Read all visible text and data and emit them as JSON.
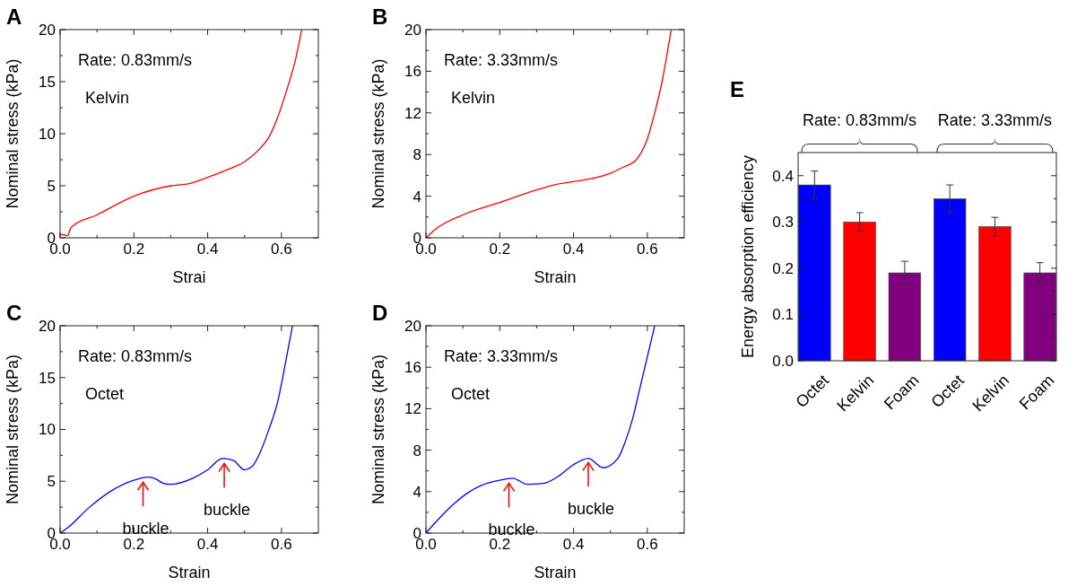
{
  "chart_data": [
    {
      "type": "line",
      "title": "A",
      "xlabel": "Strai",
      "ylabel": "Nominal stress (kPa)",
      "xlim": [
        0,
        0.7
      ],
      "ylim": [
        0,
        20
      ],
      "xticks": [
        {
          "value": 0,
          "label": "0.0"
        },
        {
          "value": 0.1,
          "label": null
        },
        0.2,
        {
          "value": 0.3,
          "label": null
        },
        0.4,
        {
          "value": 0.5,
          "label": null
        },
        0.6
      ],
      "yticks": [
        0,
        {
          "value": 2.5,
          "label": null
        },
        5,
        {
          "value": 7.5,
          "label": null
        },
        10,
        {
          "value": 12.5,
          "label": null
        },
        15,
        {
          "value": 17.5,
          "label": null
        },
        20
      ],
      "annotations": [
        "Rate: 0.83mm/s",
        "Kelvin"
      ],
      "series": [
        {
          "color": "#ff0000",
          "x": [
            0,
            0.01,
            0.02,
            0.03,
            0.1,
            0.2,
            0.3,
            0.35,
            0.4,
            0.45,
            0.5,
            0.54,
            0.565,
            0.59,
            0.61,
            0.64,
            0.655
          ],
          "values": [
            0.3,
            0.3,
            0.2,
            1.0,
            2.2,
            4.0,
            5.0,
            5.2,
            5.8,
            6.5,
            7.3,
            8.5,
            9.6,
            11.6,
            13.7,
            17.4,
            20
          ]
        }
      ]
    },
    {
      "type": "line",
      "title": "B",
      "xlabel": "Strain",
      "ylabel": "Nominal stress (kPa)",
      "xlim": [
        0,
        0.7
      ],
      "ylim": [
        0,
        20
      ],
      "xticks": [
        {
          "value": 0,
          "label": "0.0"
        },
        {
          "value": 0.1,
          "label": null
        },
        0.2,
        {
          "value": 0.3,
          "label": null
        },
        0.4,
        {
          "value": 0.5,
          "label": null
        },
        0.6
      ],
      "yticks": [
        0,
        {
          "value": 2,
          "label": null
        },
        4,
        {
          "value": 6,
          "label": null
        },
        8,
        {
          "value": 10,
          "label": null
        },
        12,
        {
          "value": 14,
          "label": null
        },
        16,
        {
          "value": 18,
          "label": null
        },
        20
      ],
      "annotations": [
        "Rate: 3.33mm/s",
        "Kelvin"
      ],
      "series": [
        {
          "color": "#ff0000",
          "x": [
            0,
            0.025,
            0.1,
            0.2,
            0.3,
            0.35,
            0.4,
            0.45,
            0.5,
            0.53,
            0.57,
            0.6,
            0.62,
            0.64,
            0.66,
            0.665
          ],
          "values": [
            0,
            0.8,
            2.2,
            3.4,
            4.6,
            5.1,
            5.4,
            5.7,
            6.2,
            6.7,
            7.5,
            9.5,
            12,
            15,
            19,
            20
          ]
        }
      ]
    },
    {
      "type": "line",
      "title": "C",
      "xlabel": "Strain",
      "ylabel": "Nominal stress (kPa)",
      "xlim": [
        0,
        0.7
      ],
      "ylim": [
        0,
        20
      ],
      "xticks": [
        {
          "value": 0,
          "label": "0.0"
        },
        {
          "value": 0.1,
          "label": null
        },
        0.2,
        {
          "value": 0.3,
          "label": null
        },
        0.4,
        {
          "value": 0.5,
          "label": null
        },
        0.6
      ],
      "yticks": [
        0,
        {
          "value": 2.5,
          "label": null
        },
        5,
        {
          "value": 7.5,
          "label": null
        },
        10,
        {
          "value": 12.5,
          "label": null
        },
        15,
        {
          "value": 17.5,
          "label": null
        },
        20
      ],
      "annotations": [
        "Rate: 0.83mm/s",
        "Octet",
        {
          "text": "buckle",
          "x": 0.225,
          "y": 5.0
        },
        {
          "text": "buckle",
          "x": 0.445,
          "y": 6.8
        }
      ],
      "series": [
        {
          "color": "#0000ff",
          "x": [
            0,
            0.02,
            0.08,
            0.14,
            0.2,
            0.24,
            0.26,
            0.28,
            0.3,
            0.36,
            0.4,
            0.44,
            0.47,
            0.5,
            0.52,
            0.54,
            0.565,
            0.59,
            0.613,
            0.63
          ],
          "values": [
            0,
            0.5,
            2.5,
            4.1,
            5.1,
            5.4,
            5.2,
            4.8,
            4.7,
            5.3,
            6.1,
            7.2,
            7.0,
            6.1,
            6.4,
            7.6,
            9.9,
            12.7,
            16.8,
            20
          ]
        }
      ]
    },
    {
      "type": "line",
      "title": "D",
      "xlabel": "Strain",
      "ylabel": "Nominal stress (kPa)",
      "xlim": [
        0,
        0.7
      ],
      "ylim": [
        0,
        20
      ],
      "xticks": [
        {
          "value": 0,
          "label": "0.0"
        },
        {
          "value": 0.1,
          "label": null
        },
        0.2,
        {
          "value": 0.3,
          "label": null
        },
        0.4,
        {
          "value": 0.5,
          "label": null
        },
        0.6
      ],
      "yticks": [
        0,
        {
          "value": 2,
          "label": null
        },
        4,
        {
          "value": 6,
          "label": null
        },
        8,
        {
          "value": 10,
          "label": null
        },
        12,
        {
          "value": 14,
          "label": null
        },
        16,
        {
          "value": 18,
          "label": null
        },
        20
      ],
      "annotations": [
        "Rate: 3.33mm/s",
        "Octet",
        {
          "text": "buckle",
          "x": 0.225,
          "y": 4.9
        },
        {
          "text": "buckle",
          "x": 0.44,
          "y": 6.9
        }
      ],
      "series": [
        {
          "color": "#0000ff",
          "x": [
            0,
            0.025,
            0.06,
            0.11,
            0.15,
            0.2,
            0.235,
            0.275,
            0.32,
            0.36,
            0.4,
            0.44,
            0.48,
            0.52,
            0.54,
            0.56,
            0.58,
            0.6,
            0.62
          ],
          "values": [
            0,
            1.0,
            2.3,
            3.8,
            4.6,
            5.1,
            5.3,
            4.7,
            4.8,
            5.5,
            6.6,
            7.2,
            6.3,
            7.2,
            8.8,
            11,
            14,
            17,
            20
          ]
        }
      ]
    },
    {
      "type": "bar",
      "title": "E",
      "ylabel": "Energy absorption efficiency",
      "ylim": [
        0,
        0.45
      ],
      "yticks": [
        {
          "value": 0,
          "label": "0.0"
        },
        {
          "value": 0.05,
          "label": null
        },
        0.1,
        {
          "value": 0.15,
          "label": null
        },
        0.2,
        {
          "value": 0.25,
          "label": null
        },
        0.3,
        {
          "value": 0.35,
          "label": null
        },
        0.4
      ],
      "categories": [
        "Octet",
        "Kelvin",
        "Foam",
        "Octet",
        "Kelvin",
        "Foam"
      ],
      "values": [
        0.38,
        0.3,
        0.19,
        0.35,
        0.29,
        0.19
      ],
      "errors": [
        0.03,
        0.02,
        0.025,
        0.03,
        0.02,
        0.022
      ],
      "colors": [
        "#0000ff",
        "#ff0000",
        "#800080",
        "#0000ff",
        "#ff0000",
        "#800080"
      ],
      "annotations": [
        "Rate: 0.83mm/s",
        "Rate: 3.33mm/s"
      ]
    }
  ]
}
